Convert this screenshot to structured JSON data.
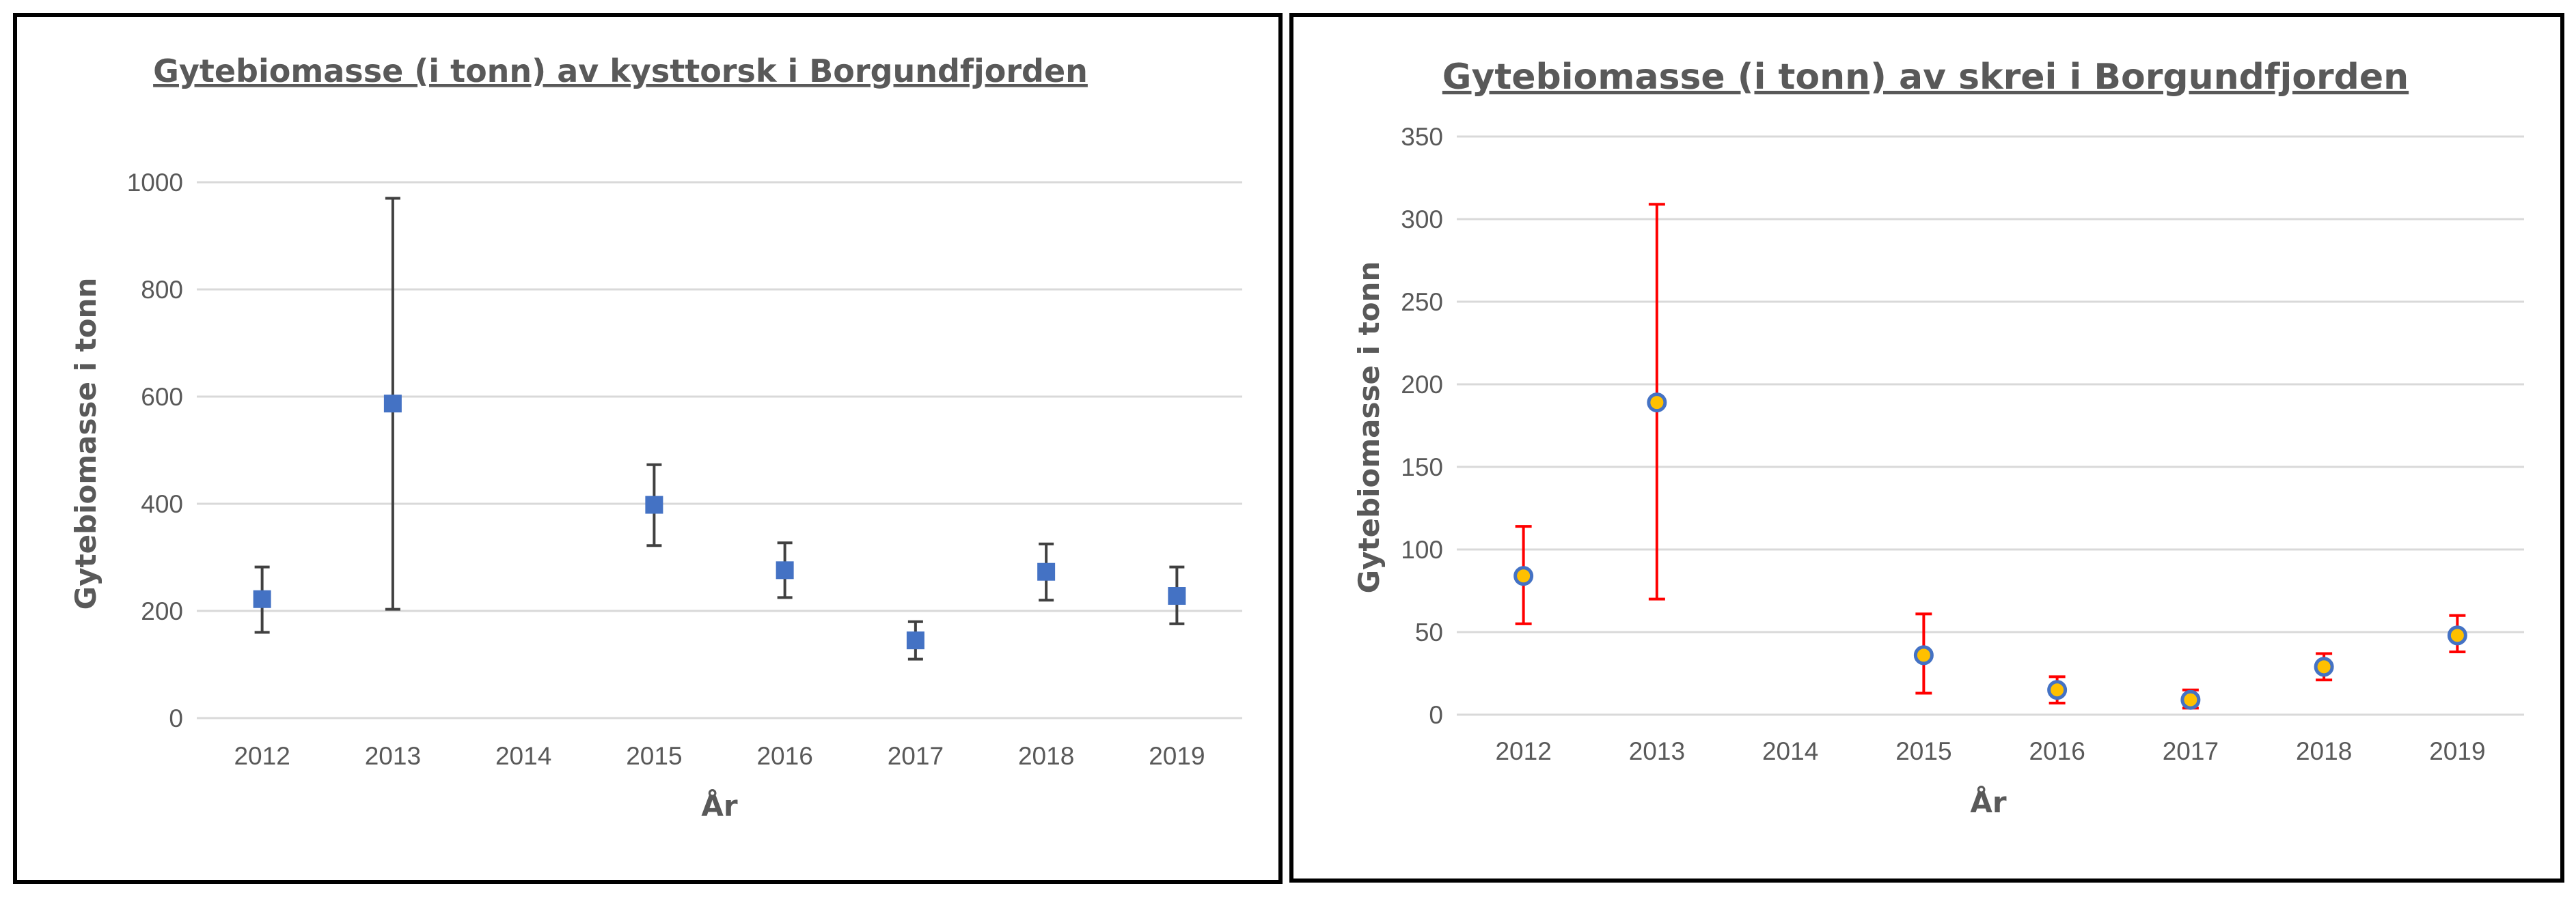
{
  "chart_data": [
    {
      "type": "scatter",
      "title": "Gytebiomasse (i tonn) av kysttorsk i Borgundfjorden",
      "xlabel": "År",
      "ylabel": "Gytebiomasse i tonn",
      "categories": [
        "2012",
        "2013",
        "2014",
        "2015",
        "2016",
        "2017",
        "2018",
        "2019"
      ],
      "yticks": [
        "0",
        "200",
        "400",
        "600",
        "800",
        "1000"
      ],
      "ylim": [
        0,
        1000
      ],
      "grid": true,
      "marker": "square",
      "marker_color": "#4472C4",
      "errorbar_color": "#404040",
      "series": [
        {
          "values": [
            222,
            587,
            null,
            398,
            276,
            145,
            273,
            228
          ],
          "error_low": [
            160,
            203,
            null,
            322,
            225,
            110,
            220,
            176
          ],
          "error_high": [
            282,
            970,
            null,
            473,
            327,
            180,
            325,
            282
          ]
        }
      ]
    },
    {
      "type": "scatter",
      "title": "Gytebiomasse (i tonn) av skrei i Borgundfjorden",
      "xlabel": "År",
      "ylabel": "Gytebiomasse i tonn",
      "categories": [
        "2012",
        "2013",
        "2014",
        "2015",
        "2016",
        "2017",
        "2018",
        "2019"
      ],
      "yticks": [
        "0",
        "50",
        "100",
        "150",
        "200",
        "250",
        "300",
        "350"
      ],
      "ylim": [
        0,
        350
      ],
      "grid": true,
      "marker": "circle",
      "marker_color": "#FFC000",
      "marker_edge": "#4472C4",
      "errorbar_color": "#FF0000",
      "series": [
        {
          "values": [
            84,
            189,
            null,
            36,
            15,
            9,
            29,
            48
          ],
          "error_low": [
            55,
            70,
            null,
            13,
            7,
            4,
            21,
            38
          ],
          "error_high": [
            114,
            309,
            null,
            61,
            23,
            15,
            37,
            60
          ]
        }
      ]
    }
  ]
}
